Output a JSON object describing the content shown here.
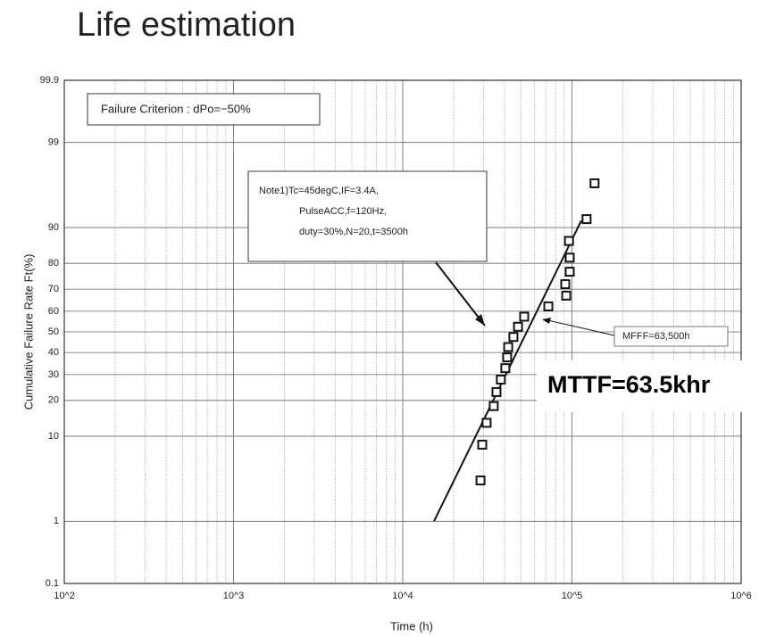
{
  "chart_data": {
    "type": "scatter",
    "title": "Life estimation",
    "x_label": "Time (h)",
    "y_label": "Cumulative Failure Rate Ft(%)",
    "xscale": "log",
    "yscale": "probit",
    "grid": true,
    "xlim": [
      100,
      1000000
    ],
    "xticks": [
      {
        "value": 100,
        "label": "10^2"
      },
      {
        "value": 1000,
        "label": "10^3"
      },
      {
        "value": 10000,
        "label": "10^4"
      },
      {
        "value": 100000,
        "label": "10^5"
      },
      {
        "value": 1000000,
        "label": "10^6"
      }
    ],
    "xminor": [
      200,
      300,
      400,
      500,
      600,
      700,
      800,
      900,
      2000,
      3000,
      4000,
      5000,
      6000,
      7000,
      8000,
      9000,
      20000,
      30000,
      40000,
      50000,
      60000,
      70000,
      80000,
      90000,
      200000,
      300000,
      400000,
      500000,
      600000,
      700000,
      800000,
      900000
    ],
    "ylim": [
      0.1,
      99.9
    ],
    "yticks": [
      0.1,
      1,
      10,
      20,
      30,
      40,
      50,
      60,
      70,
      80,
      90,
      99,
      99.9
    ],
    "x": [
      28800,
      29500,
      31300,
      34500,
      35800,
      38000,
      40400,
      41400,
      42000,
      45100,
      48000,
      52200,
      72500,
      92500,
      91300,
      97000,
      97000,
      96000,
      122000,
      136000
    ],
    "values": [
      3.4,
      8.3,
      13.2,
      18.1,
      23.0,
      27.9,
      32.8,
      37.7,
      42.6,
      47.5,
      52.5,
      57.4,
      62.3,
      67.2,
      72.1,
      77.0,
      81.9,
      86.8,
      91.7,
      96.6
    ],
    "fit": {
      "x": [
        15300,
        113500
      ],
      "values": [
        1.0,
        91.4
      ]
    },
    "annotations": {
      "criterion": "Failure Criterion : dPo=−50%",
      "note": [
        "Note1)Tc=45degC,IF=3.4A,",
        "PulseACC,f=120Hz,",
        "duty=30%,N=20,t=3500h"
      ],
      "mfff": "MFFF=63,500h",
      "mttf": "MTTF=63.5khr"
    }
  }
}
